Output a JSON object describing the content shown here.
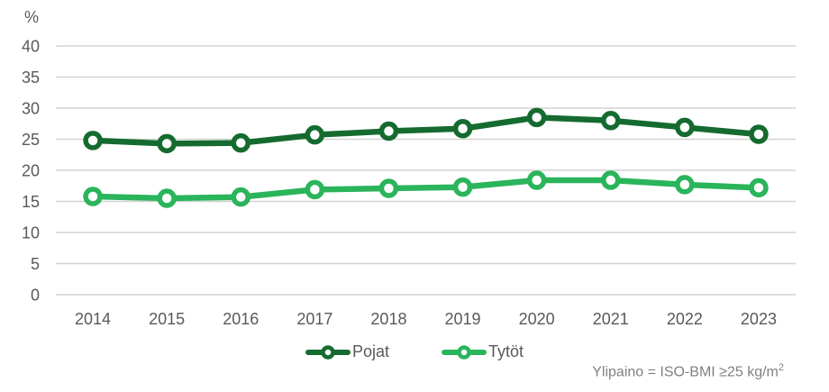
{
  "chart_data": {
    "type": "line",
    "unit_label": "%",
    "categories": [
      "2014",
      "2015",
      "2016",
      "2017",
      "2018",
      "2019",
      "2020",
      "2021",
      "2022",
      "2023"
    ],
    "series": [
      {
        "name": "Pojat",
        "color": "#156b2f",
        "values": [
          24.8,
          24.3,
          24.4,
          25.7,
          26.3,
          26.7,
          28.5,
          28.0,
          26.9,
          25.8
        ]
      },
      {
        "name": "Tytöt",
        "color": "#2ab45b",
        "values": [
          15.8,
          15.5,
          15.7,
          16.9,
          17.1,
          17.3,
          18.4,
          18.4,
          17.7,
          17.2
        ]
      }
    ],
    "ylim": [
      0,
      40
    ],
    "yticks": [
      40,
      35,
      30,
      25,
      20,
      15,
      10,
      5,
      0
    ],
    "grid": true,
    "legend_position": "bottom-center",
    "title": "",
    "xlabel": "",
    "ylabel": "%"
  },
  "footnote": {
    "text": "Ylipaino = ISO-BMI ≥25 kg/m",
    "sup": "2"
  },
  "colors": {
    "grid": "#d3d3d3",
    "axis_text": "#595959",
    "footnote_text": "#7f7f7f",
    "background": "#ffffff"
  }
}
